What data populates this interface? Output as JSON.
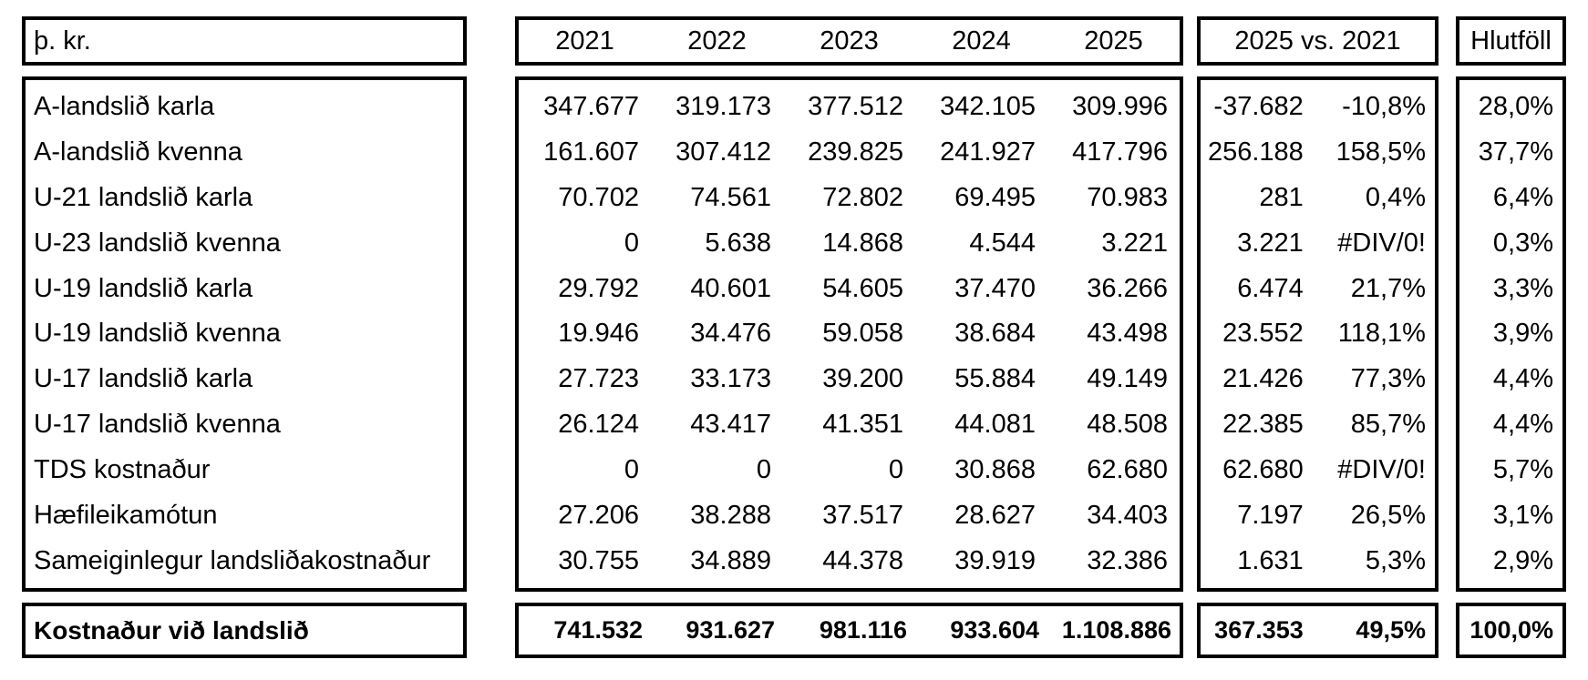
{
  "header": {
    "unit_label": "þ. kr.",
    "years": [
      "2021",
      "2022",
      "2023",
      "2024",
      "2025"
    ],
    "comparison_label": "2025 vs. 2021",
    "share_label": "Hlutföll"
  },
  "rows": [
    {
      "label": "A-landslið karla",
      "values": [
        "347.677",
        "319.173",
        "377.512",
        "342.105",
        "309.996"
      ],
      "diff": "-37.682",
      "diff_pct": "-10,8%",
      "share": "28,0%"
    },
    {
      "label": "A-landslið kvenna",
      "values": [
        "161.607",
        "307.412",
        "239.825",
        "241.927",
        "417.796"
      ],
      "diff": "256.188",
      "diff_pct": "158,5%",
      "share": "37,7%"
    },
    {
      "label": "U-21 landslið karla",
      "values": [
        "70.702",
        "74.561",
        "72.802",
        "69.495",
        "70.983"
      ],
      "diff": "281",
      "diff_pct": "0,4%",
      "share": "6,4%"
    },
    {
      "label": "U-23 landslið kvenna",
      "values": [
        "0",
        "5.638",
        "14.868",
        "4.544",
        "3.221"
      ],
      "diff": "3.221",
      "diff_pct": "#DIV/0!",
      "share": "0,3%"
    },
    {
      "label": "U-19 landslið karla",
      "values": [
        "29.792",
        "40.601",
        "54.605",
        "37.470",
        "36.266"
      ],
      "diff": "6.474",
      "diff_pct": "21,7%",
      "share": "3,3%"
    },
    {
      "label": "U-19 landslið kvenna",
      "values": [
        "19.946",
        "34.476",
        "59.058",
        "38.684",
        "43.498"
      ],
      "diff": "23.552",
      "diff_pct": "118,1%",
      "share": "3,9%"
    },
    {
      "label": "U-17 landslið karla",
      "values": [
        "27.723",
        "33.173",
        "39.200",
        "55.884",
        "49.149"
      ],
      "diff": "21.426",
      "diff_pct": "77,3%",
      "share": "4,4%"
    },
    {
      "label": "U-17 landslið kvenna",
      "values": [
        "26.124",
        "43.417",
        "41.351",
        "44.081",
        "48.508"
      ],
      "diff": "22.385",
      "diff_pct": "85,7%",
      "share": "4,4%"
    },
    {
      "label": "TDS kostnaður",
      "values": [
        "0",
        "0",
        "0",
        "30.868",
        "62.680"
      ],
      "diff": "62.680",
      "diff_pct": "#DIV/0!",
      "share": "5,7%"
    },
    {
      "label": "Hæfileikamótun",
      "values": [
        "27.206",
        "38.288",
        "37.517",
        "28.627",
        "34.403"
      ],
      "diff": "7.197",
      "diff_pct": "26,5%",
      "share": "3,1%"
    },
    {
      "label": "Sameiginlegur landsliðakostnaður",
      "values": [
        "30.755",
        "34.889",
        "44.378",
        "39.919",
        "32.386"
      ],
      "diff": "1.631",
      "diff_pct": "5,3%",
      "share": "2,9%"
    }
  ],
  "total": {
    "label": "Kostnaður við landslið",
    "values": [
      "741.532",
      "931.627",
      "981.116",
      "933.604",
      "1.108.886"
    ],
    "diff": "367.353",
    "diff_pct": "49,5%",
    "share": "100,0%"
  },
  "colors": {
    "border": "#000000",
    "text": "#000000",
    "background": "#ffffff"
  }
}
